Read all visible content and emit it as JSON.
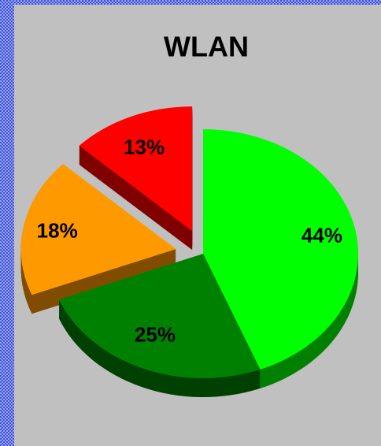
{
  "chart_data": {
    "type": "pie",
    "title": "WLAN",
    "values": [
      44,
      25,
      18,
      13
    ],
    "value_labels": [
      "44%",
      "25%",
      "18%",
      "13%"
    ],
    "colors": [
      "#00ff00",
      "#008000",
      "#ff9900",
      "#ff0000"
    ]
  }
}
